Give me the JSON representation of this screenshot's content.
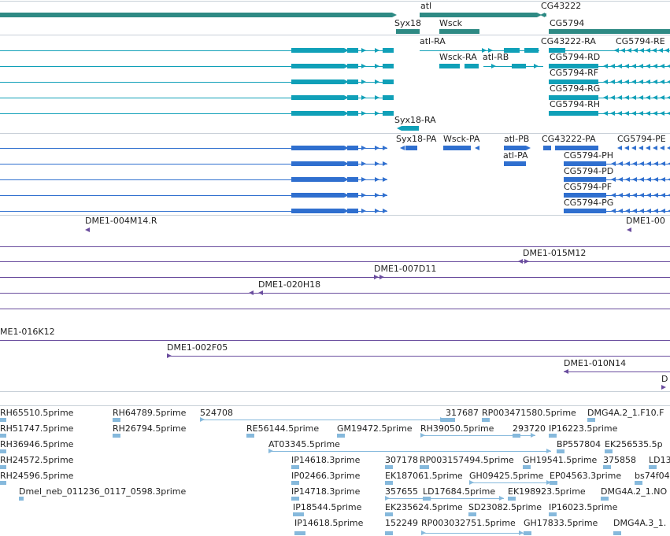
{
  "colors": {
    "gene": "#2e8a84",
    "transcript": "#10a0b8",
    "cds": "#2f6fcf",
    "bac": "#6a4d9e",
    "est": "#86b9dc",
    "separator": "#c8d0d8"
  },
  "tracks": {
    "genes": {
      "labels": [
        "atl",
        "CG43222",
        "Syx18",
        "Wsck",
        "CG5794"
      ]
    },
    "transcripts": {
      "labels": [
        "atl-RA",
        "CG43222-RA",
        "CG5794-RE",
        "Wsck-RA",
        "atl-RB",
        "CG5794-RD",
        "CG5794-RF",
        "CG5794-RG",
        "CG5794-RH",
        "Syx18-RA"
      ]
    },
    "proteins": {
      "labels": [
        "Syx18-PA",
        "Wsck-PA",
        "atl-PB",
        "CG43222-PA",
        "CG5794-PE",
        "atl-PA",
        "CG5794-PH",
        "CG5794-PD",
        "CG5794-PF",
        "CG5794-PG"
      ]
    },
    "bac": {
      "labels": [
        "DME1-004M14.R",
        "DME1-00",
        "DME1-015M12",
        "DME1-007D11",
        "DME1-020H18",
        "ME1-016K12",
        "DME1-002F05",
        "DME1-010N14",
        "D"
      ]
    },
    "ests": {
      "labels": [
        "RH65510.5prime",
        "RH64789.5prime",
        "524708",
        "317687",
        "RP003471580.5prime",
        "DMG4A.2_1.F10.F",
        "RH51747.5prime",
        "RH26794.5prime",
        "RE56144.5prime",
        "GM19472.5prime",
        "RH39050.5prime",
        "293720",
        "IP16223.5prime",
        "RH36946.5prime",
        "AT03345.5prime",
        "BP557804",
        "EK256535.5p",
        "RH24572.5prime",
        "IP14618.3prime",
        "307178",
        "RP003157494.5prime",
        "GH19541.5prime",
        "375858",
        "LD13",
        "RH24596.5prime",
        "IP02466.3prime",
        "EK187061.5prime",
        "GH09425.5prime",
        "EP04563.3prime",
        "bs74f04",
        "Dmel_neb_011236_0117_0598.3prime",
        "IP14718.3prime",
        "357655",
        "LD17684.5prime",
        "EK198923.5prime",
        "DMG4A.2_1.NO",
        "IP18544.5prime",
        "EK235624.5prime",
        "SD23082.5prime",
        "IP16023.5prime",
        "IP14618.5prime",
        "152249",
        "RP003032751.5prime",
        "GH17833.5prime",
        "DMG4A.3_1."
      ]
    }
  }
}
